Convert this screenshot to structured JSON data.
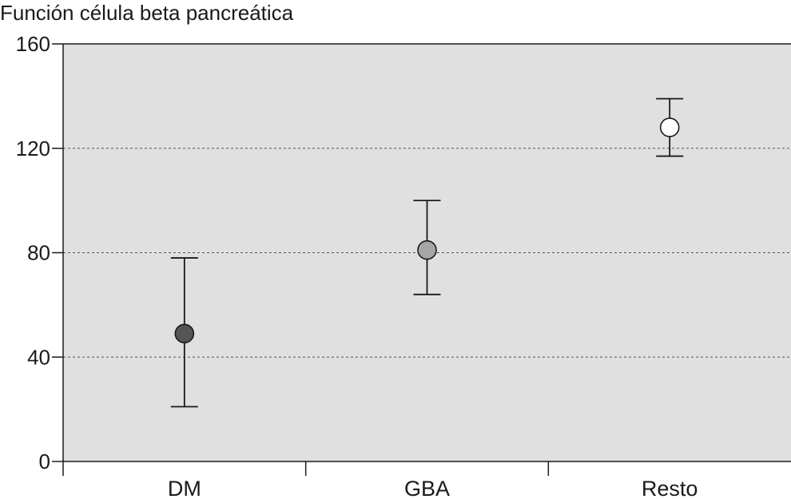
{
  "chart_data": {
    "type": "scatter",
    "title": "",
    "ylabel": "Función célula beta pancreática",
    "xlabel": "",
    "categories": [
      "DM",
      "GBA",
      "Resto"
    ],
    "ylim": [
      0,
      160
    ],
    "yticks": [
      0,
      40,
      80,
      120,
      160
    ],
    "grid": true,
    "points": [
      {
        "category": "DM",
        "value": 49,
        "upper": 78,
        "lower": 21,
        "color": "#555555"
      },
      {
        "category": "GBA",
        "value": 81,
        "upper": 100,
        "lower": 64,
        "color": "#a6a6a6"
      },
      {
        "category": "Resto",
        "value": 128,
        "upper": 139,
        "lower": 117,
        "color": "#ffffff"
      }
    ],
    "colors": {
      "plot_background": "#e0e0e0",
      "axis": "#1a1a1a",
      "gridline": "#555555"
    }
  }
}
